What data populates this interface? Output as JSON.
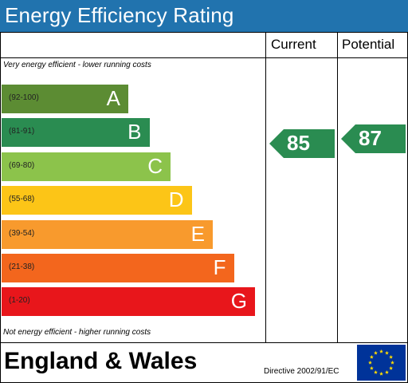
{
  "header": {
    "title": "Energy Efficiency Rating"
  },
  "columns": {
    "current": "Current",
    "potential": "Potential"
  },
  "notes": {
    "top": "Very energy efficient - lower running costs",
    "bottom": "Not energy efficient - higher running costs"
  },
  "footer": {
    "region": "England & Wales",
    "directive": "Directive 2002/91/EC"
  },
  "colors": {
    "header": "#2173ae",
    "A": "#5c8c33",
    "B": "#2a8c51",
    "C": "#8cc34b",
    "D": "#fcc517",
    "E": "#f89a2d",
    "F": "#f3661d",
    "G": "#e8161b",
    "eu_flag": "#003399",
    "eu_stars": "#ffdd00"
  },
  "chart_data": {
    "type": "bar",
    "categories": [
      "A",
      "B",
      "C",
      "D",
      "E",
      "F",
      "G"
    ],
    "ranges": [
      "(92-100)",
      "(81-91)",
      "(69-80)",
      "(55-68)",
      "(39-54)",
      "(21-38)",
      "(1-20)"
    ],
    "current": 85,
    "potential": 87
  }
}
